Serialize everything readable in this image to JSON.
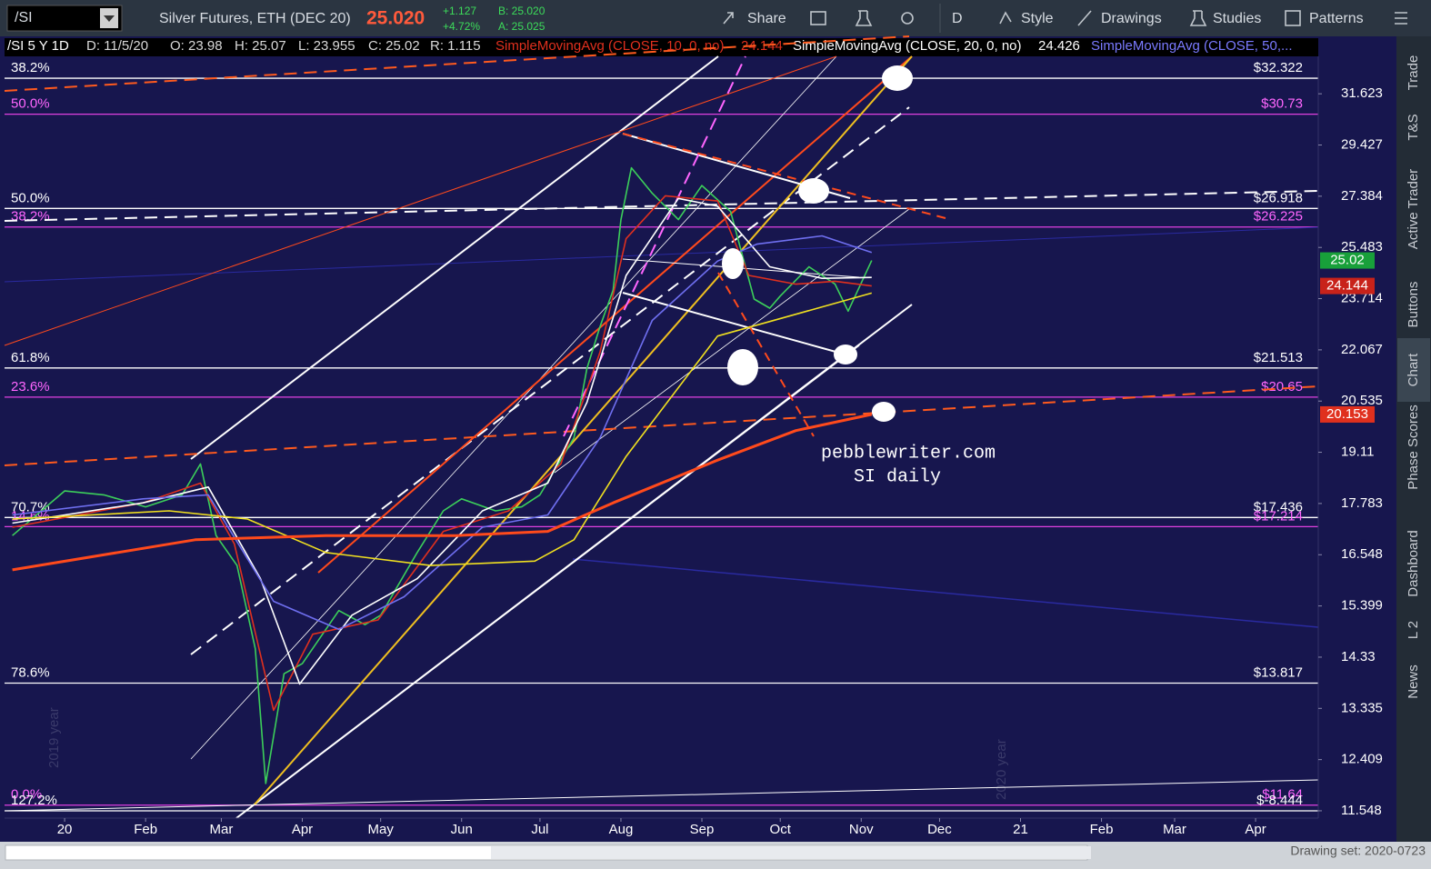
{
  "toolbar": {
    "symbol": "/SI",
    "description": "Silver Futures, ETH (DEC 20)",
    "last": "25.020",
    "change": "+1.127",
    "change_pct": "+4.72%",
    "bid": "B: 25.020",
    "ask": "A: 25.025",
    "buttons": [
      "Share",
      "D",
      "Style",
      "Drawings",
      "Studies",
      "Patterns"
    ]
  },
  "header": {
    "symbol": "/SI 5 Y 1D",
    "date": "D: 11/5/20",
    "open": "O: 23.98",
    "high": "H: 25.07",
    "low": "L: 23.955",
    "close": "C: 25.02",
    "range": "R: 1.115",
    "studies": [
      {
        "label": "SimpleMovingAvg (CLOSE, 10, 0, no)",
        "value": "24.144"
      },
      {
        "label": "SimpleMovingAvg (CLOSE, 20, 0, no)",
        "value": "24.426"
      },
      {
        "label": "SimpleMovingAvg (CLOSE, 50,..."
      }
    ]
  },
  "chart_data": {
    "type": "line",
    "log_scale": true,
    "xlim": [
      -23,
      480
    ],
    "ylim": [
      11.43,
      33.33
    ],
    "xticks": [
      {
        "value": 0,
        "label": "20"
      },
      {
        "value": 31,
        "label": "Feb"
      },
      {
        "value": 60,
        "label": "Mar"
      },
      {
        "value": 91,
        "label": "Apr"
      },
      {
        "value": 121,
        "label": "May"
      },
      {
        "value": 152,
        "label": "Jun"
      },
      {
        "value": 182,
        "label": "Jul"
      },
      {
        "value": 213,
        "label": "Aug"
      },
      {
        "value": 244,
        "label": "Sep"
      },
      {
        "value": 274,
        "label": "Oct"
      },
      {
        "value": 305,
        "label": "Nov"
      },
      {
        "value": 335,
        "label": "Dec"
      },
      {
        "value": 366,
        "label": "21"
      },
      {
        "value": 397,
        "label": "Feb"
      },
      {
        "value": 425,
        "label": "Mar"
      },
      {
        "value": 456,
        "label": "Apr"
      }
    ],
    "yticks": [
      31.623,
      29.427,
      27.384,
      25.483,
      23.714,
      22.067,
      20.535,
      19.11,
      17.783,
      16.548,
      15.399,
      14.33,
      13.335,
      12.409,
      11.548
    ],
    "series": [
      {
        "color": "#3ccf5a",
        "x": [
          -20,
          0,
          15,
          31,
          45,
          52,
          58,
          66,
          73,
          77,
          84,
          91,
          105,
          115,
          121,
          135,
          145,
          152,
          165,
          175,
          182,
          195,
          200,
          205,
          210,
          213,
          217,
          225,
          235,
          244,
          255,
          264,
          270,
          274,
          285,
          295,
          300,
          309
        ],
        "values": [
          17.0,
          18.1,
          18.0,
          17.7,
          18.0,
          18.8,
          17.0,
          16.3,
          14.5,
          12.0,
          14.0,
          14.2,
          15.3,
          15.0,
          15.2,
          16.6,
          17.6,
          17.9,
          17.6,
          17.7,
          18.0,
          19.5,
          21.5,
          22.8,
          24.0,
          26.5,
          28.5,
          27.5,
          26.5,
          27.8,
          26.8,
          23.7,
          23.4,
          23.8,
          24.8,
          24.2,
          23.3,
          25.02
        ]
      },
      {
        "color": "#e0301e",
        "x": [
          -20,
          30,
          52,
          65,
          80,
          95,
          120,
          145,
          170,
          190,
          205,
          215,
          230,
          250,
          262,
          280,
          295,
          309
        ],
        "values": [
          17.2,
          17.8,
          18.3,
          16.8,
          13.3,
          14.8,
          15.1,
          17.1,
          17.6,
          18.8,
          22,
          25.8,
          27.4,
          27.2,
          24.5,
          24.2,
          24.3,
          24.14
        ]
      },
      {
        "color": "#ffffff",
        "x": [
          -20,
          30,
          55,
          75,
          90,
          110,
          135,
          160,
          185,
          200,
          215,
          235,
          250,
          270,
          290,
          309
        ],
        "values": [
          17.3,
          17.8,
          18.2,
          16.0,
          13.8,
          15.2,
          16.0,
          17.6,
          18.3,
          20.5,
          24.5,
          27.3,
          27.0,
          24.8,
          24.4,
          24.43
        ]
      },
      {
        "color": "#6f6ff0",
        "x": [
          -20,
          30,
          55,
          80,
          105,
          130,
          160,
          185,
          205,
          225,
          250,
          265,
          290,
          309
        ],
        "values": [
          17.5,
          17.9,
          18.0,
          15.5,
          14.9,
          15.6,
          17.2,
          17.5,
          19.5,
          23.0,
          25.0,
          25.6,
          25.9,
          25.3
        ]
      },
      {
        "color": "#f0e020",
        "x": [
          -20,
          40,
          70,
          100,
          140,
          180,
          195,
          215,
          250,
          280,
          309
        ],
        "values": [
          17.4,
          17.6,
          17.4,
          16.6,
          16.3,
          16.4,
          16.9,
          19.0,
          22.5,
          23.2,
          23.9
        ]
      },
      {
        "color": "#ff4a1c",
        "x": [
          -20,
          50,
          100,
          150,
          185,
          210,
          250,
          280,
          309
        ],
        "values": [
          16.2,
          16.9,
          17.0,
          17.0,
          17.1,
          17.8,
          18.9,
          19.7,
          20.153
        ]
      }
    ],
    "fib_levels": [
      {
        "ratio": "38.2%",
        "price": {
          "value": 32.322,
          "label": "$32.322"
        },
        "color": "#ffffff"
      },
      {
        "ratio": "50.0%",
        "price": {
          "value": 30.73,
          "label": "$30.73"
        },
        "color": "#e040e0"
      },
      {
        "ratio": "50.0%",
        "price": {
          "value": 26.918,
          "label": "$26.918"
        },
        "color": "#ffffff"
      },
      {
        "ratio": "38.2%",
        "price": {
          "value": 26.225,
          "label": "$26.225"
        },
        "color": "#e040e0"
      },
      {
        "ratio": "61.8%",
        "price": {
          "value": 21.513,
          "label": "$21.513"
        },
        "color": "#ffffff"
      },
      {
        "ratio": "23.6%",
        "price": {
          "value": 20.65,
          "label": "$20.65"
        },
        "color": "#e040e0"
      },
      {
        "ratio": "70.7%",
        "price": {
          "value": 17.436,
          "label": "$17.436"
        },
        "color": "#ffffff"
      },
      {
        "ratio": "14.6%",
        "price": {
          "value": 17.214,
          "label": "$17.214"
        },
        "color": "#e040e0"
      },
      {
        "ratio": "78.6%",
        "price": {
          "value": 13.817,
          "label": "$13.817"
        },
        "color": "#ffffff"
      },
      {
        "ratio": "0.0%",
        "price": {
          "value": 11.64,
          "label": "$11.64"
        },
        "color": "#e040e0"
      },
      {
        "ratio": "127.2%",
        "price": {
          "value": -8.444,
          "label": "$-8.444"
        },
        "color": "#ffffff"
      }
    ]
  },
  "watermarks": [
    "2019 year",
    "2020 year"
  ],
  "annotation": [
    "pebblewriter.com",
    "SI daily"
  ],
  "sidebar": [
    "Trade",
    "T&S",
    "Active Trader",
    "Buttons",
    "Chart",
    "Phase Scores",
    "Dashboard",
    "L 2",
    "News"
  ],
  "status": "Drawing set: 2020-0723"
}
